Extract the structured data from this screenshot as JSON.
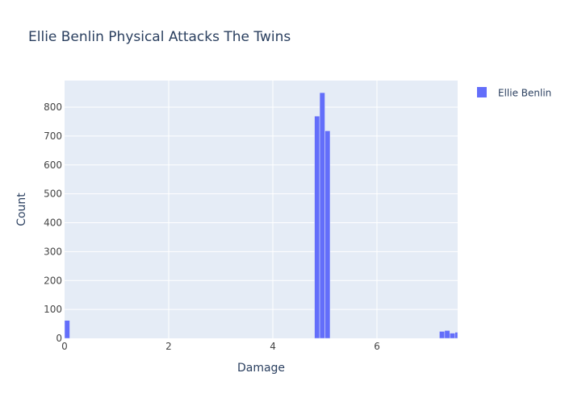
{
  "chart_data": {
    "type": "bar",
    "title": "Ellie Benlin Physical Attacks The Twins",
    "xlabel": "Damage",
    "ylabel": "Count",
    "xlim": [
      0,
      7.55
    ],
    "ylim": [
      0,
      892
    ],
    "x_ticks": [
      0,
      2,
      4,
      6
    ],
    "y_ticks": [
      0,
      100,
      200,
      300,
      400,
      500,
      600,
      700,
      800
    ],
    "bin_width": 0.1,
    "legend_position": "top-right",
    "grid": true,
    "series": [
      {
        "name": "Ellie Benlin",
        "color": "#636efa",
        "bins": [
          {
            "x0": 0.0,
            "x1": 0.1,
            "count": 62
          },
          {
            "x0": 4.8,
            "x1": 4.9,
            "count": 769
          },
          {
            "x0": 4.9,
            "x1": 5.0,
            "count": 850
          },
          {
            "x0": 5.0,
            "x1": 5.1,
            "count": 718
          },
          {
            "x0": 7.2,
            "x1": 7.3,
            "count": 24
          },
          {
            "x0": 7.3,
            "x1": 7.4,
            "count": 27
          },
          {
            "x0": 7.4,
            "x1": 7.5,
            "count": 18
          },
          {
            "x0": 7.5,
            "x1": 7.6,
            "count": 21
          }
        ]
      }
    ]
  },
  "colors": {
    "plot_background": "#e5ecf6",
    "gridline": "#ffffff",
    "text": "#2a3f5f",
    "tick_text": "#444444"
  }
}
